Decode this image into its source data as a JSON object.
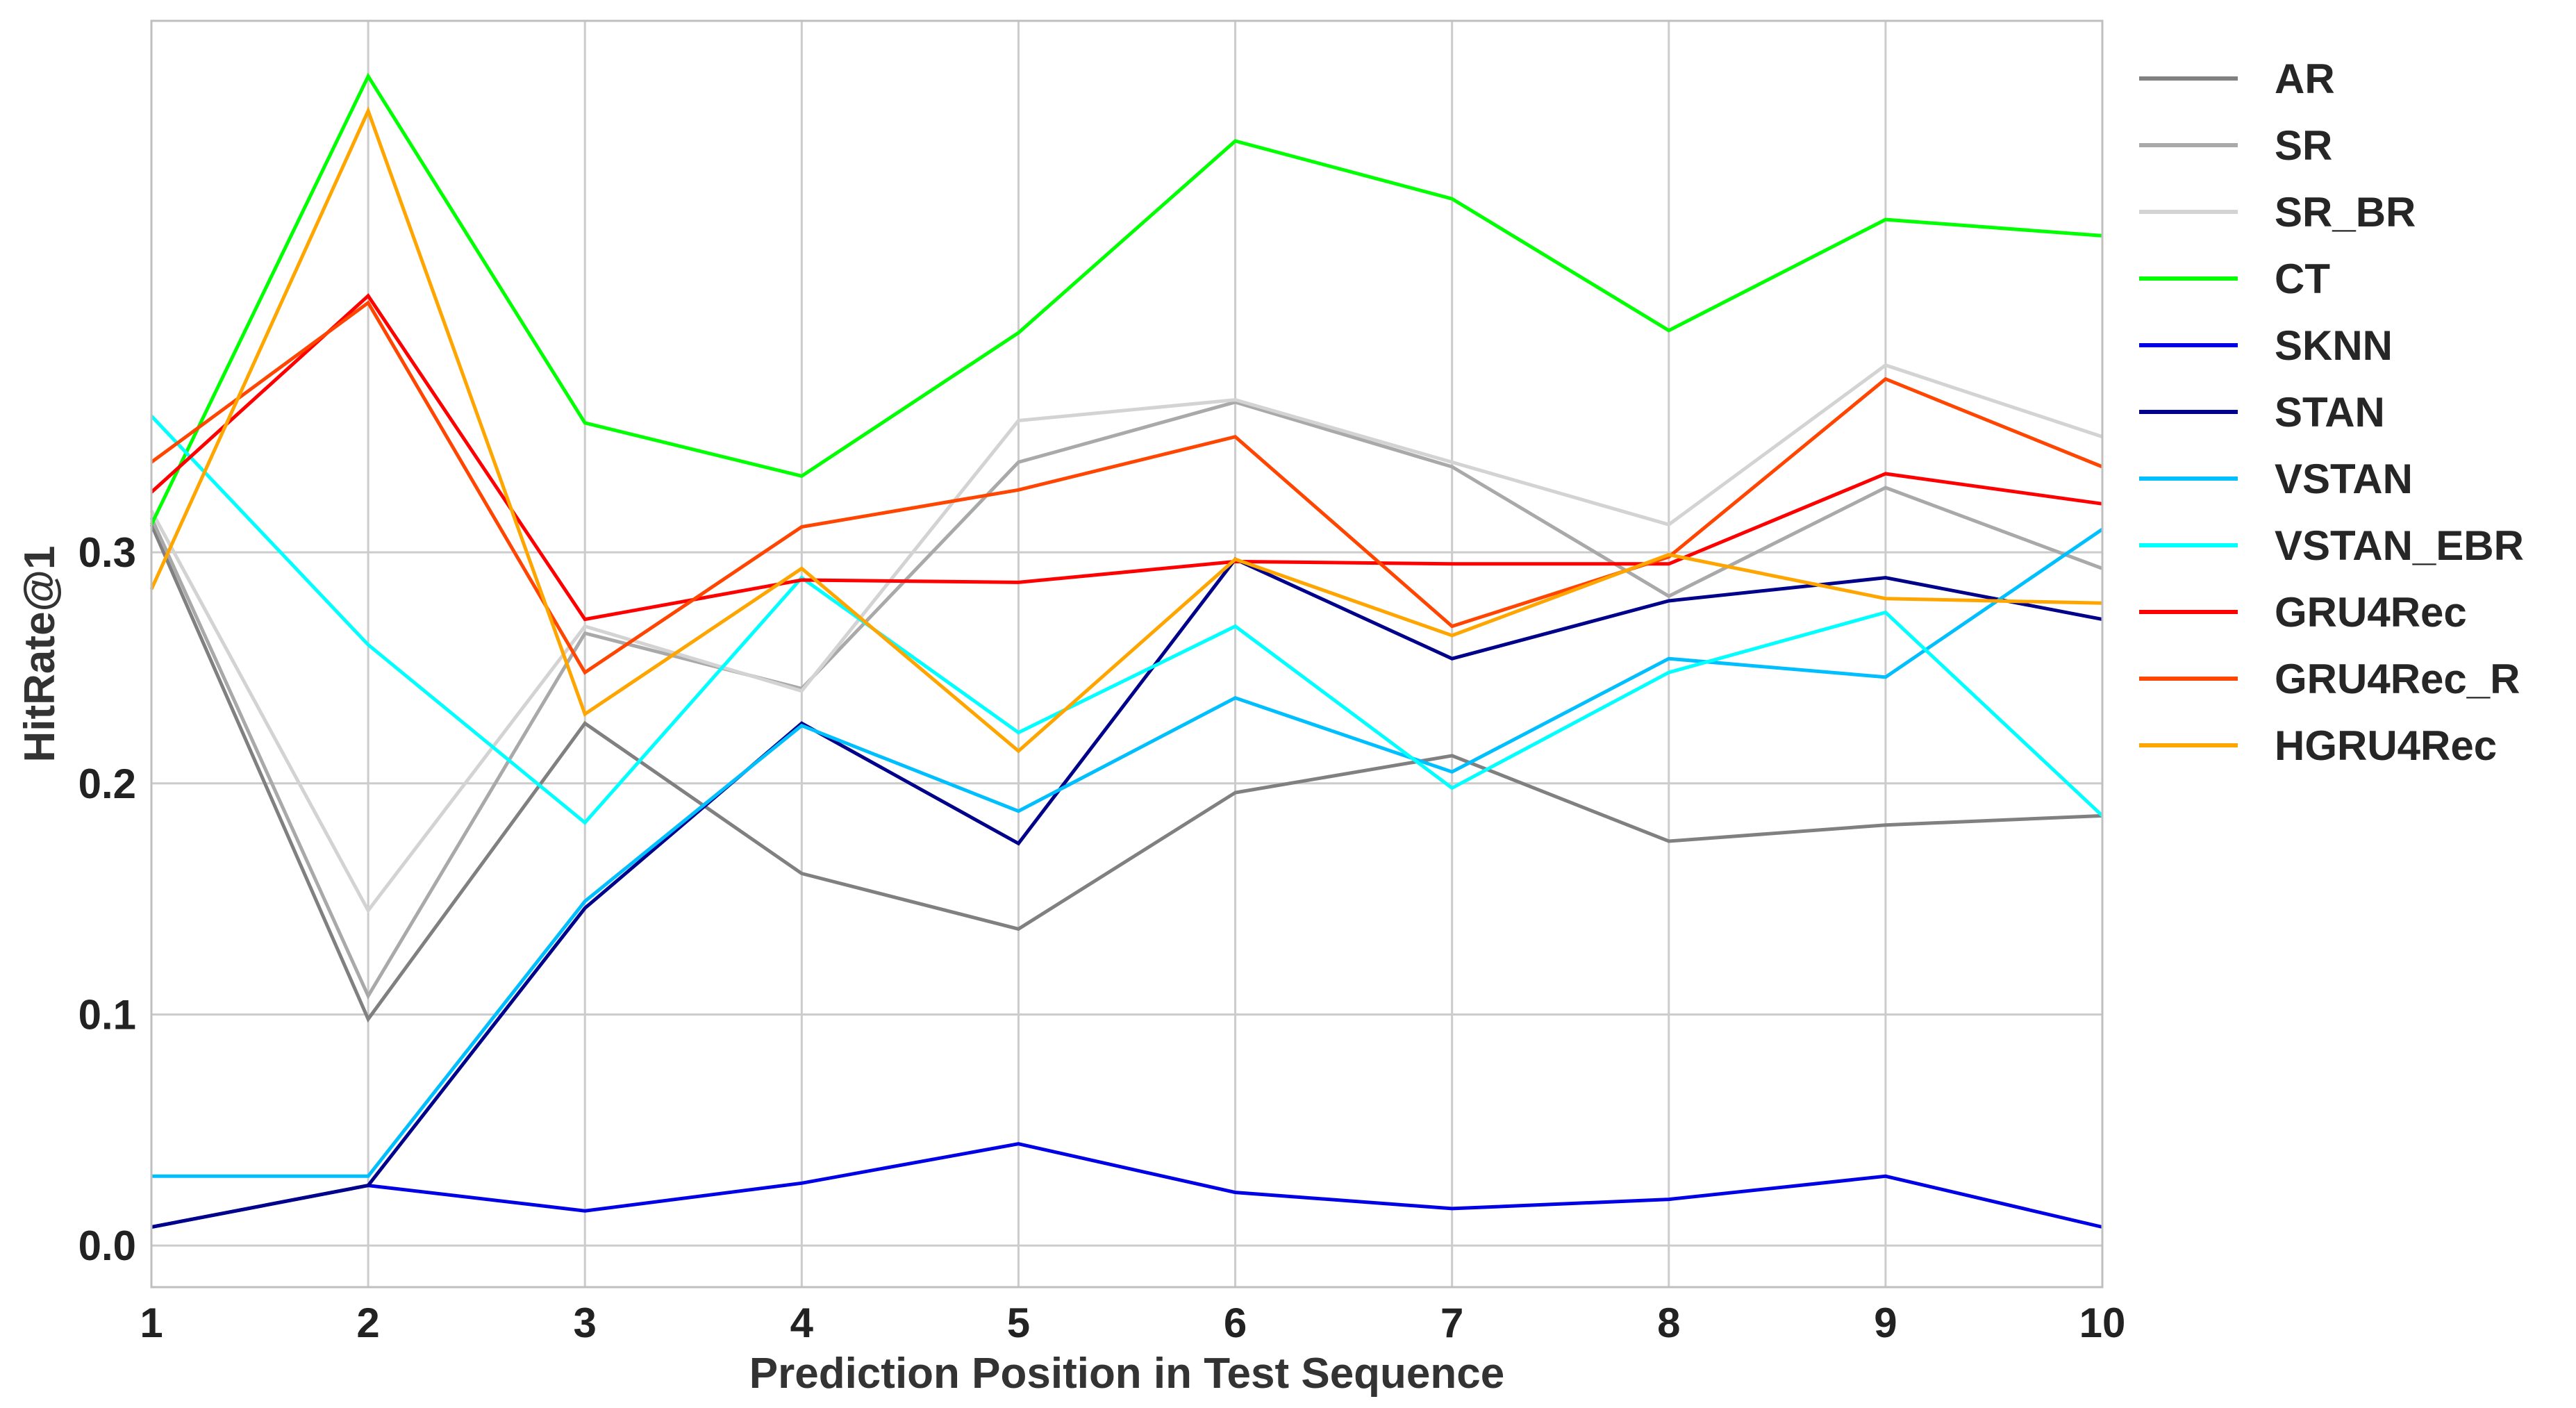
{
  "chart_data": {
    "type": "line",
    "xlabel": "Prediction Position in Test Sequence",
    "ylabel": "HitRate@1",
    "x": [
      1,
      2,
      3,
      4,
      5,
      6,
      7,
      8,
      9,
      10
    ],
    "xlim": [
      1,
      10
    ],
    "ylim": [
      -0.018,
      0.53
    ],
    "y_ticks": [
      0.0,
      0.1,
      0.2,
      0.3
    ],
    "y_tick_labels": [
      "0.0",
      "0.1",
      "0.2",
      "0.3"
    ],
    "grid": true,
    "legend_position": "outside-right",
    "series": [
      {
        "name": "AR",
        "color": "#808080",
        "values": [
          0.312,
          0.098,
          0.226,
          0.161,
          0.137,
          0.196,
          0.212,
          0.175,
          0.182,
          0.186
        ]
      },
      {
        "name": "SR",
        "color": "#a9a9a9",
        "values": [
          0.315,
          0.108,
          0.265,
          0.241,
          0.339,
          0.365,
          0.337,
          0.281,
          0.328,
          0.293
        ]
      },
      {
        "name": "SR_BR",
        "color": "#d3d3d3",
        "values": [
          0.318,
          0.145,
          0.268,
          0.24,
          0.357,
          0.366,
          0.339,
          0.312,
          0.381,
          0.35
        ]
      },
      {
        "name": "CT",
        "color": "#00ff00",
        "values": [
          0.312,
          0.506,
          0.356,
          0.333,
          0.395,
          0.478,
          0.453,
          0.396,
          0.444,
          0.437
        ]
      },
      {
        "name": "SKNN",
        "color": "#0000e6",
        "values": [
          0.008,
          0.026,
          0.015,
          0.027,
          0.044,
          0.023,
          0.016,
          0.02,
          0.03,
          0.008
        ]
      },
      {
        "name": "STAN",
        "color": "#00008b",
        "values": [
          0.008,
          0.026,
          0.146,
          0.226,
          0.174,
          0.297,
          0.254,
          0.279,
          0.289,
          0.271
        ]
      },
      {
        "name": "VSTAN",
        "color": "#00bfff",
        "values": [
          0.03,
          0.03,
          0.149,
          0.225,
          0.188,
          0.237,
          0.205,
          0.254,
          0.246,
          0.31
        ]
      },
      {
        "name": "VSTAN_EBR",
        "color": "#00ffff",
        "values": [
          0.359,
          0.26,
          0.183,
          0.289,
          0.222,
          0.268,
          0.198,
          0.248,
          0.274,
          0.186
        ]
      },
      {
        "name": "GRU4Rec",
        "color": "#ff0000",
        "values": [
          0.326,
          0.411,
          0.271,
          0.288,
          0.287,
          0.296,
          0.295,
          0.295,
          0.334,
          0.321
        ]
      },
      {
        "name": "GRU4Rec_R",
        "color": "#ff4500",
        "values": [
          0.339,
          0.408,
          0.248,
          0.311,
          0.327,
          0.35,
          0.268,
          0.298,
          0.375,
          0.337
        ]
      },
      {
        "name": "HGRU4Rec",
        "color": "#ffa500",
        "values": [
          0.284,
          0.491,
          0.23,
          0.293,
          0.214,
          0.297,
          0.264,
          0.299,
          0.28,
          0.278
        ]
      }
    ]
  }
}
